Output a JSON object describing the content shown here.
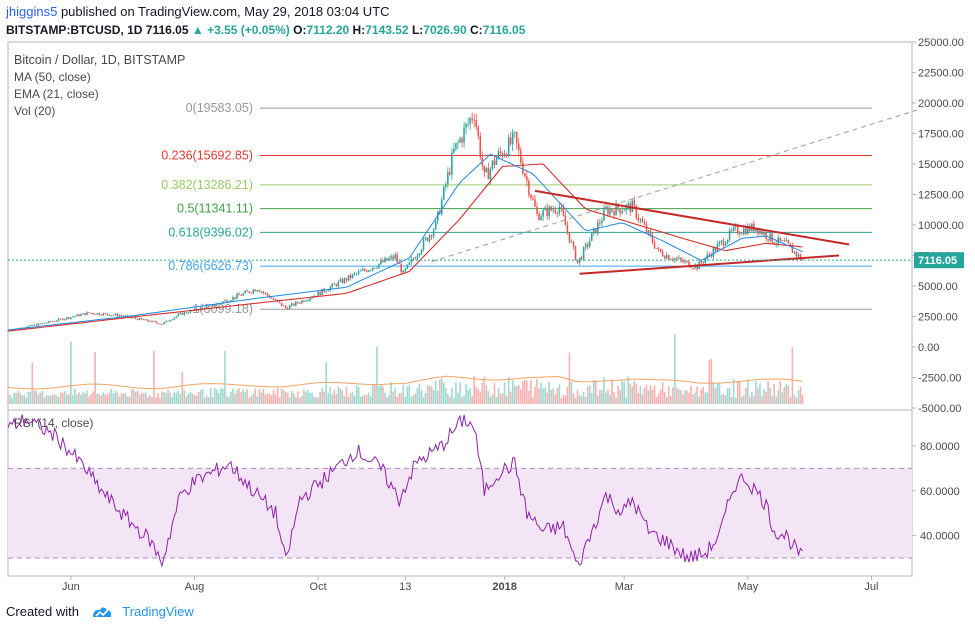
{
  "header": {
    "user": "jhiggins5",
    "published": "published on TradingView.com, May 29, 2018 03:04 UTC",
    "symbol": "BITSTAMP:BTCUSD, 1D",
    "last": "7116.05",
    "change": "▲ +3.55 (+0.05%)",
    "o_label": "O:",
    "o": "7112.20",
    "h_label": "H:",
    "h": "7143.52",
    "l_label": "L:",
    "l": "7026.90",
    "c_label": "C:",
    "c": "7116.05"
  },
  "indicators": {
    "title": "Bitcoin / Dollar, 1D, BITSTAMP",
    "ma": "MA (50, close)",
    "ema": "EMA (21, close)",
    "vol": "Vol (20)",
    "rsi": "RSI (14, close)"
  },
  "footer": {
    "created": "Created with",
    "brand": "TradingView"
  },
  "colors": {
    "up": "#26a69a",
    "down": "#ef5350",
    "ma": "#d32f2f",
    "ema": "#1e88e5",
    "trend": "#c62828",
    "rsi": "#8e24aa",
    "rsi_band": "#f3e5f5",
    "price_tag": "#26a69a"
  },
  "chart_data": [
    {
      "type": "candlestick",
      "title": "Bitcoin / Dollar, 1D, BITSTAMP",
      "x_ticks": [
        "Jun",
        "Aug",
        "Oct",
        "13",
        "2018",
        "Mar",
        "May",
        "Jul"
      ],
      "y_ticks": [
        "25000.00",
        "22500.00",
        "20000.00",
        "17500.00",
        "15000.00",
        "12500.00",
        "10000.00",
        "7500.00",
        "5000.00",
        "2500.00",
        "0.00",
        "-2500.00",
        "-5000.00"
      ],
      "ylim": [
        -5000,
        25000
      ],
      "last_price": "7116.05",
      "price_path": [
        [
          "2017-05-01",
          1350
        ],
        [
          "2017-05-20",
          2000
        ],
        [
          "2017-06-10",
          2800
        ],
        [
          "2017-06-25",
          2600
        ],
        [
          "2017-07-16",
          1900
        ],
        [
          "2017-07-25",
          2700
        ],
        [
          "2017-08-10",
          3400
        ],
        [
          "2017-09-01",
          4800
        ],
        [
          "2017-09-15",
          3200
        ],
        [
          "2017-09-30",
          4300
        ],
        [
          "2017-10-20",
          6000
        ],
        [
          "2017-11-08",
          7400
        ],
        [
          "2017-11-12",
          6000
        ],
        [
          "2017-11-28",
          10000
        ],
        [
          "2017-12-07",
          16000
        ],
        [
          "2017-12-17",
          19300
        ],
        [
          "2017-12-22",
          13800
        ],
        [
          "2017-12-28",
          15500
        ],
        [
          "2018-01-06",
          17000
        ],
        [
          "2018-01-17",
          10800
        ],
        [
          "2018-01-28",
          11500
        ],
        [
          "2018-02-06",
          6900
        ],
        [
          "2018-02-20",
          11200
        ],
        [
          "2018-03-05",
          11500
        ],
        [
          "2018-03-18",
          7800
        ],
        [
          "2018-03-31",
          6900
        ],
        [
          "2018-04-06",
          6600
        ],
        [
          "2018-04-24",
          9500
        ],
        [
          "2018-05-05",
          9800
        ],
        [
          "2018-05-14",
          8700
        ],
        [
          "2018-05-20",
          8400
        ],
        [
          "2018-05-28",
          7116
        ]
      ],
      "ma50_path": [
        [
          "2017-05-01",
          1300
        ],
        [
          "2017-07-01",
          2450
        ],
        [
          "2017-09-01",
          3600
        ],
        [
          "2017-10-15",
          4400
        ],
        [
          "2017-11-15",
          6200
        ],
        [
          "2017-12-10",
          10500
        ],
        [
          "2017-12-31",
          14800
        ],
        [
          "2018-01-20",
          15000
        ],
        [
          "2018-02-10",
          11300
        ],
        [
          "2018-03-10",
          9900
        ],
        [
          "2018-04-01",
          8800
        ],
        [
          "2018-04-20",
          7900
        ],
        [
          "2018-05-10",
          8500
        ],
        [
          "2018-05-28",
          8200
        ]
      ],
      "ema21_path": [
        [
          "2017-05-01",
          1400
        ],
        [
          "2017-07-01",
          2550
        ],
        [
          "2017-09-01",
          4000
        ],
        [
          "2017-10-15",
          4900
        ],
        [
          "2017-11-15",
          7300
        ],
        [
          "2017-12-10",
          13500
        ],
        [
          "2017-12-25",
          15800
        ],
        [
          "2018-01-15",
          14200
        ],
        [
          "2018-02-10",
          9500
        ],
        [
          "2018-02-28",
          10200
        ],
        [
          "2018-03-20",
          8700
        ],
        [
          "2018-04-08",
          7100
        ],
        [
          "2018-04-28",
          8900
        ],
        [
          "2018-05-10",
          9100
        ],
        [
          "2018-05-28",
          7800
        ]
      ],
      "fib_levels": [
        {
          "label": "0(19583.05)",
          "value": 19583.05,
          "color": "#999999"
        },
        {
          "label": "0.236(15692.85)",
          "value": 15692.85,
          "color": "#e53935"
        },
        {
          "label": "0.382(13286.21)",
          "value": 13286.21,
          "color": "#9ccc65"
        },
        {
          "label": "0.5(11341.11)",
          "value": 11341.11,
          "color": "#43a047"
        },
        {
          "label": "0.618(9396.02)",
          "value": 9396.02,
          "color": "#26a69a"
        },
        {
          "label": "0.786(6626.73)",
          "value": 6626.73,
          "color": "#42a5f5"
        },
        {
          "label": "1(3099.18)",
          "value": 3099.18,
          "color": "#999999"
        }
      ],
      "trendlines": [
        {
          "from": [
            "2018-01-16",
            12800
          ],
          "to": [
            "2018-06-20",
            8400
          ]
        },
        {
          "from": [
            "2018-02-07",
            6000
          ],
          "to": [
            "2018-06-15",
            7500
          ]
        }
      ],
      "dashed_trend": {
        "from": [
          "2017-11-26",
          7000
        ],
        "to": [
          "2018-07-25",
          19500
        ]
      }
    },
    {
      "type": "bar",
      "title": "Vol (20)",
      "note": "volume histogram, values shown only as bar heights"
    },
    {
      "type": "line",
      "title": "RSI (14, close)",
      "y_ticks": [
        "80.0000",
        "60.0000",
        "40.0000"
      ],
      "band": [
        30,
        70
      ],
      "ylim": [
        22,
        96
      ],
      "rsi_path": [
        [
          "2017-05-01",
          88
        ],
        [
          "2017-05-10",
          92
        ],
        [
          "2017-05-25",
          84
        ],
        [
          "2017-06-08",
          70
        ],
        [
          "2017-06-16",
          60
        ],
        [
          "2017-06-28",
          48
        ],
        [
          "2017-07-10",
          38
        ],
        [
          "2017-07-16",
          28
        ],
        [
          "2017-07-25",
          58
        ],
        [
          "2017-08-01",
          64
        ],
        [
          "2017-08-18",
          72
        ],
        [
          "2017-08-30",
          60
        ],
        [
          "2017-09-10",
          50
        ],
        [
          "2017-09-15",
          28
        ],
        [
          "2017-09-22",
          56
        ],
        [
          "2017-10-05",
          66
        ],
        [
          "2017-10-20",
          78
        ],
        [
          "2017-11-01",
          70
        ],
        [
          "2017-11-10",
          56
        ],
        [
          "2017-11-18",
          72
        ],
        [
          "2017-12-01",
          80
        ],
        [
          "2017-12-08",
          88
        ],
        [
          "2017-12-12",
          92
        ],
        [
          "2017-12-17",
          88
        ],
        [
          "2017-12-22",
          60
        ],
        [
          "2017-12-29",
          68
        ],
        [
          "2018-01-06",
          72
        ],
        [
          "2018-01-12",
          50
        ],
        [
          "2018-01-20",
          42
        ],
        [
          "2018-01-30",
          44
        ],
        [
          "2018-02-06",
          26
        ],
        [
          "2018-02-14",
          44
        ],
        [
          "2018-02-20",
          58
        ],
        [
          "2018-02-28",
          50
        ],
        [
          "2018-03-05",
          56
        ],
        [
          "2018-03-13",
          42
        ],
        [
          "2018-03-24",
          36
        ],
        [
          "2018-04-01",
          30
        ],
        [
          "2018-04-10",
          32
        ],
        [
          "2018-04-17",
          40
        ],
        [
          "2018-04-24",
          62
        ],
        [
          "2018-04-29",
          66
        ],
        [
          "2018-05-05",
          60
        ],
        [
          "2018-05-10",
          54
        ],
        [
          "2018-05-14",
          42
        ],
        [
          "2018-05-20",
          40
        ],
        [
          "2018-05-23",
          36
        ],
        [
          "2018-05-28",
          30
        ]
      ]
    }
  ]
}
